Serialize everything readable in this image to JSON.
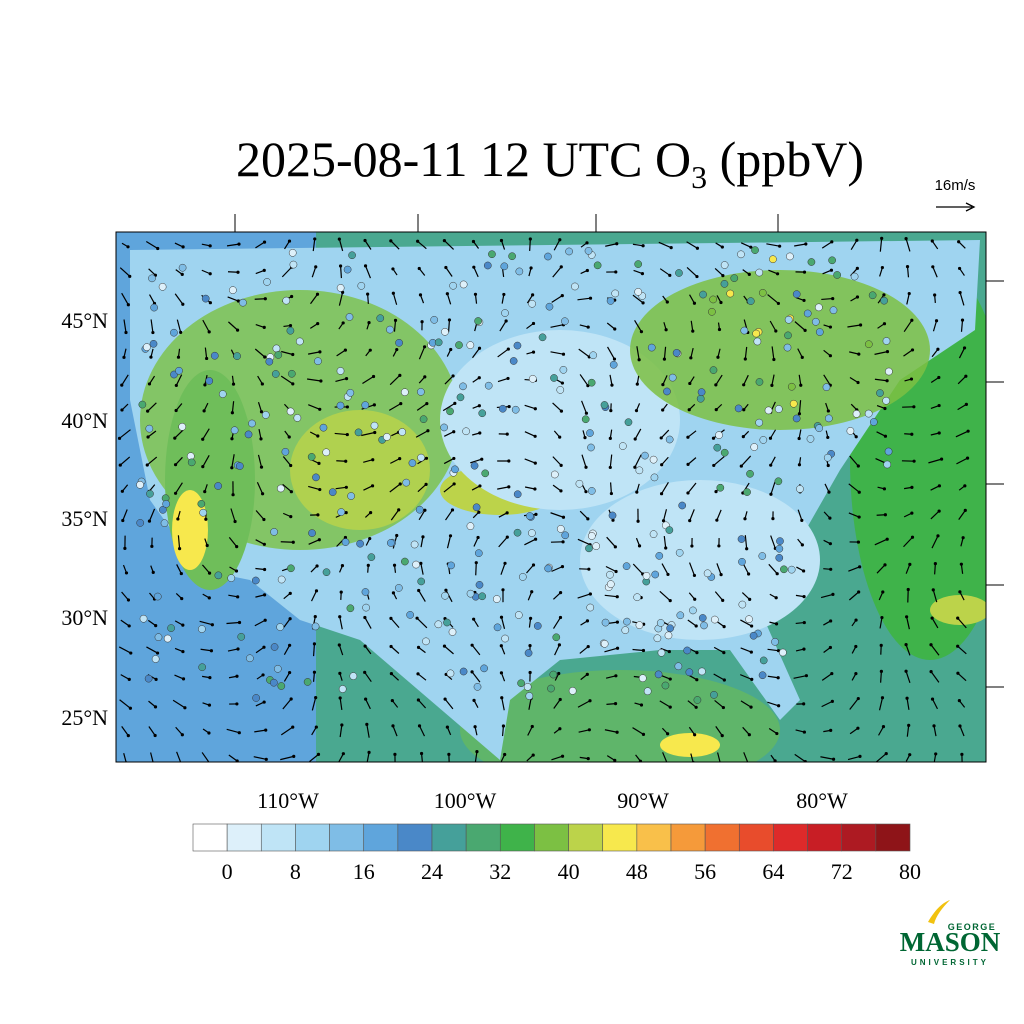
{
  "header": {
    "title": {
      "main": "2025-08-11 12 UTC O",
      "subscript": "3",
      "suffix": " (ppbV)"
    },
    "vector_legend": "16m/s"
  },
  "map": {
    "lat_labels": [
      "45°N",
      "40°N",
      "35°N",
      "30°N",
      "25°N"
    ],
    "lon_labels": [
      "110°W",
      "100°W",
      "90°W",
      "80°W"
    ]
  },
  "colorbar": {
    "colors": [
      "#ffffff",
      "#ddf0fa",
      "#bfe4f6",
      "#9fd4f0",
      "#7fbde6",
      "#5fa5dc",
      "#4a88c8",
      "#45a09a",
      "#4aa870",
      "#3fb34a",
      "#7cc043",
      "#bcd34a",
      "#f7e84d",
      "#f9c04a",
      "#f59a3a",
      "#f07030",
      "#e84c2c",
      "#dd2a2a",
      "#c81e25",
      "#ad1a22",
      "#8e1418"
    ],
    "labels": [
      0,
      8,
      16,
      24,
      32,
      40,
      48,
      56,
      64,
      72,
      80
    ]
  },
  "logo": {
    "top": "GEORGE",
    "main": "MASON",
    "bottom": "UNIVERSITY"
  }
}
